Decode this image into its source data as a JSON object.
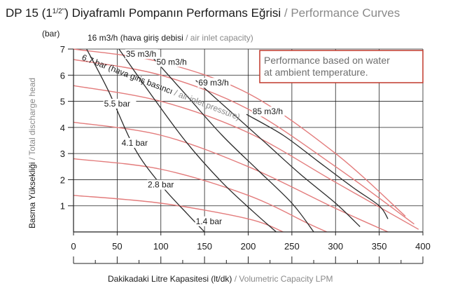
{
  "title": {
    "main_prefix": "DP 15 (1",
    "main_fraction": "1/2\"",
    "main_suffix": ") Diyaframlı Pompanın Performans Eğrisi",
    "separator": " / ",
    "english": "Performance Curves"
  },
  "colors": {
    "air_flow_curves": "#2b2b2b",
    "pressure_curves": "#e37c7c",
    "note_border": "#c0392b",
    "grid": "#222222",
    "gray_text": "#8a8a8a"
  },
  "chart_data": {
    "type": "line",
    "title": "DP 15 (1 1/2\") Diyaframlı Pompanın Performans Eğrisi / Performance Curves",
    "xlabel_tr": "Dakikadaki Litre Kapasitesi (lt/dk)",
    "xlabel_en": "Volumetric Capacity LPM",
    "ylabel_tr": "Basma Yüksekliği",
    "ylabel_en": "Total discharge head",
    "y_unit": "(bar)",
    "xlim": [
      0,
      400
    ],
    "ylim": [
      0,
      7
    ],
    "x_ticks": [
      "0",
      "50",
      "100",
      "150",
      "200",
      "250",
      "300",
      "350",
      "400"
    ],
    "y_ticks": [
      "1",
      "2",
      "3",
      "4",
      "5",
      "6",
      "7"
    ],
    "grid": true,
    "note": [
      "Performance based on water",
      "at ambient temperature."
    ],
    "air_header": {
      "value": "16 m3/h",
      "tr": "(hava giriş debisi",
      "sep": " / ",
      "en": "air inlet capacity)"
    },
    "pressure_header": {
      "tr": "6.7 bar (hava giriş basıncı",
      "sep": " / ",
      "en": "air inlet pressure)"
    },
    "air_flow_series": [
      {
        "name": "16 m3/h",
        "points": [
          [
            15,
            7.0
          ],
          [
            40,
            5.4
          ],
          [
            70,
            3.2
          ],
          [
            100,
            1.8
          ],
          [
            130,
            0.7
          ],
          [
            150,
            0.0
          ]
        ]
      },
      {
        "name": "35 m3/h",
        "points": [
          [
            52,
            7.0
          ],
          [
            90,
            5.2
          ],
          [
            130,
            3.4
          ],
          [
            170,
            1.9
          ],
          [
            205,
            0.8
          ],
          [
            232,
            0.0
          ]
        ]
      },
      {
        "name": "50 m3/h",
        "points": [
          [
            90,
            6.7
          ],
          [
            130,
            5.2
          ],
          [
            170,
            3.7
          ],
          [
            210,
            2.4
          ],
          [
            250,
            1.1
          ],
          [
            275,
            0.0
          ]
        ]
      },
      {
        "name": "69 m3/h",
        "points": [
          [
            140,
            5.8
          ],
          [
            180,
            4.6
          ],
          [
            220,
            3.4
          ],
          [
            260,
            2.2
          ],
          [
            300,
            1.1
          ],
          [
            328,
            0.2
          ]
        ]
      },
      {
        "name": "85 m3/h",
        "points": [
          [
            198,
            4.5
          ],
          [
            240,
            3.7
          ],
          [
            280,
            2.7
          ],
          [
            320,
            1.7
          ],
          [
            350,
            1.0
          ],
          [
            360,
            0.5
          ]
        ]
      }
    ],
    "pressure_series": [
      {
        "name": "6.7 bar",
        "points": [
          [
            0,
            7.0
          ],
          [
            100,
            6.5
          ],
          [
            200,
            5.3
          ],
          [
            300,
            3.0
          ],
          [
            380,
            0.6
          ]
        ]
      },
      {
        "name": "",
        "points": [
          [
            0,
            6.6
          ],
          [
            100,
            6.0
          ],
          [
            200,
            4.7
          ],
          [
            300,
            2.5
          ],
          [
            390,
            0.3
          ]
        ]
      },
      {
        "name": "5.5 bar",
        "points": [
          [
            0,
            5.6
          ],
          [
            100,
            5.0
          ],
          [
            200,
            3.8
          ],
          [
            300,
            1.9
          ],
          [
            395,
            0.1
          ]
        ]
      },
      {
        "name": "4.1 bar",
        "points": [
          [
            0,
            4.2
          ],
          [
            100,
            3.7
          ],
          [
            200,
            2.5
          ],
          [
            300,
            0.9
          ],
          [
            360,
            0.0
          ]
        ]
      },
      {
        "name": "",
        "points": [
          [
            0,
            2.8
          ],
          [
            100,
            2.4
          ],
          [
            200,
            1.4
          ],
          [
            270,
            0.3
          ],
          [
            290,
            0.0
          ]
        ]
      },
      {
        "name": "2.8 bar",
        "points": [
          [
            0,
            1.4
          ],
          [
            100,
            1.1
          ],
          [
            200,
            0.5
          ],
          [
            240,
            0.0
          ]
        ]
      }
    ],
    "curve_labels": [
      {
        "text": "35 m3/h",
        "x": 60,
        "y": 6.7
      },
      {
        "text": "50 m3/h",
        "x": 95,
        "y": 6.4
      },
      {
        "text": "69 m3/h",
        "x": 143,
        "y": 5.6
      },
      {
        "text": "85 m3/h",
        "x": 205,
        "y": 4.5
      },
      {
        "text": "5.5 bar",
        "x": 35,
        "y": 4.8
      },
      {
        "text": "4.1 bar",
        "x": 55,
        "y": 3.3
      },
      {
        "text": "2.8 bar",
        "x": 85,
        "y": 1.7
      },
      {
        "text": "1.4 bar",
        "x": 140,
        "y": 0.3
      }
    ]
  }
}
